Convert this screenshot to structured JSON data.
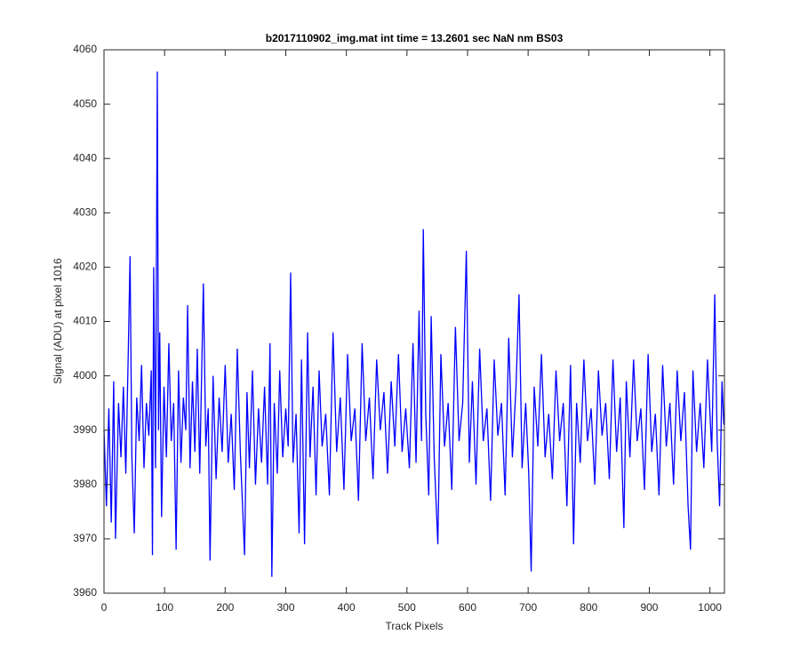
{
  "chart_data": {
    "type": "line",
    "title": "b2017110902_img.mat int time = 13.2601 sec  NaN nm BS03",
    "x_label": "Track Pixels",
    "y_label": "Signal (ADU) at pixel 1016",
    "xlim": [
      0,
      1024
    ],
    "ylim": [
      3960,
      4060
    ],
    "xticks": [
      0,
      100,
      200,
      300,
      400,
      500,
      600,
      700,
      800,
      900,
      1000
    ],
    "yticks": [
      3960,
      3970,
      3980,
      3990,
      4000,
      4010,
      4020,
      4030,
      4040,
      4050,
      4060
    ],
    "x": [
      0,
      4,
      8,
      12,
      16,
      19,
      24,
      28,
      32,
      36,
      40,
      43,
      46,
      50,
      54,
      58,
      62,
      66,
      70,
      74,
      78,
      80,
      82,
      85,
      88,
      90,
      92,
      95,
      99,
      103,
      107,
      111,
      115,
      119,
      123,
      127,
      131,
      135,
      138,
      142,
      146,
      150,
      154,
      158,
      164,
      168,
      172,
      175,
      180,
      185,
      190,
      195,
      200,
      205,
      210,
      215,
      220,
      225,
      232,
      236,
      240,
      245,
      250,
      255,
      260,
      265,
      270,
      274,
      277,
      281,
      286,
      290,
      295,
      300,
      304,
      308,
      312,
      317,
      322,
      326,
      331,
      336,
      340,
      345,
      350,
      355,
      360,
      366,
      372,
      378,
      384,
      390,
      396,
      402,
      408,
      414,
      420,
      426,
      432,
      438,
      444,
      450,
      456,
      462,
      468,
      474,
      480,
      486,
      492,
      498,
      504,
      510,
      515,
      520,
      524,
      527,
      531,
      536,
      540,
      545,
      551,
      556,
      562,
      568,
      574,
      580,
      586,
      592,
      598,
      603,
      608,
      614,
      620,
      626,
      632,
      638,
      644,
      650,
      656,
      662,
      668,
      674,
      680,
      685,
      690,
      696,
      701,
      705,
      710,
      716,
      722,
      728,
      734,
      740,
      746,
      752,
      758,
      764,
      770,
      775,
      780,
      786,
      792,
      798,
      804,
      810,
      816,
      822,
      828,
      834,
      840,
      846,
      852,
      858,
      862,
      868,
      874,
      880,
      886,
      892,
      898,
      904,
      910,
      916,
      922,
      928,
      934,
      940,
      946,
      952,
      958,
      964,
      968,
      972,
      978,
      984,
      990,
      996,
      1003,
      1008,
      1012,
      1016,
      1020,
      1023
    ],
    "series": [
      {
        "color": "#0000ff",
        "values": [
          3990,
          3976,
          3994,
          3973,
          3999,
          3970,
          3995,
          3985,
          3998,
          3982,
          4004,
          4022,
          3985,
          3971,
          3996,
          3988,
          4002,
          3983,
          3995,
          3989,
          4001,
          3967,
          4020,
          3983,
          4056,
          3990,
          4008,
          3974,
          3998,
          3985,
          4006,
          3988,
          3995,
          3968,
          4001,
          3984,
          3996,
          3990,
          4013,
          3983,
          3999,
          3986,
          4005,
          3982,
          4017,
          3987,
          3994,
          3966,
          4000,
          3981,
          3996,
          3986,
          4002,
          3984,
          3993,
          3979,
          4005,
          3986,
          3967,
          3997,
          3983,
          4001,
          3980,
          3994,
          3984,
          3998,
          3980,
          4006,
          3963,
          3995,
          3982,
          4001,
          3985,
          3994,
          3987,
          4019,
          3984,
          3993,
          3971,
          4003,
          3969,
          4008,
          3985,
          3998,
          3978,
          4001,
          3987,
          3993,
          3978,
          4008,
          3986,
          3996,
          3979,
          4004,
          3988,
          3994,
          3977,
          4006,
          3988,
          3996,
          3981,
          4003,
          3990,
          3997,
          3982,
          3999,
          3987,
          4004,
          3986,
          3994,
          3983,
          4006,
          3984,
          4012,
          3988,
          4027,
          3993,
          3978,
          4011,
          3985,
          3969,
          4004,
          3987,
          3995,
          3979,
          4009,
          3988,
          3995,
          4023,
          3984,
          3999,
          3980,
          4005,
          3988,
          3994,
          3977,
          4003,
          3989,
          3995,
          3978,
          4007,
          3985,
          3998,
          4015,
          3983,
          3995,
          3982,
          3964,
          3998,
          3987,
          4004,
          3985,
          3993,
          3981,
          4001,
          3988,
          3995,
          3976,
          4002,
          3969,
          3995,
          3984,
          4003,
          3988,
          3994,
          3980,
          4001,
          3989,
          3995,
          3981,
          4003,
          3986,
          3996,
          3972,
          3999,
          3985,
          4003,
          3988,
          3994,
          3979,
          4004,
          3986,
          3993,
          3978,
          4002,
          3987,
          3995,
          3980,
          4001,
          3988,
          3997,
          3976,
          3968,
          4001,
          3986,
          3995,
          3983,
          4003,
          3986,
          4015,
          3988,
          3976,
          3999,
          3991
        ]
      }
    ]
  }
}
